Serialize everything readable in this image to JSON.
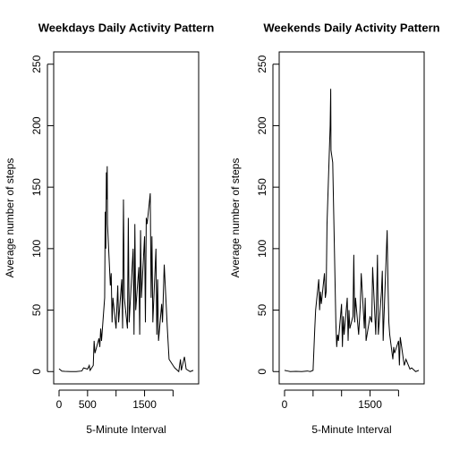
{
  "chart_data": [
    {
      "type": "line",
      "title": "Weekdays Daily Activity Pattern",
      "xlabel": "5-Minute Interval",
      "ylabel": "Average number of steps",
      "color": "#000000",
      "x": [
        0,
        50,
        100,
        200,
        300,
        400,
        430,
        500,
        530,
        545,
        600,
        615,
        630,
        700,
        715,
        730,
        745,
        800,
        810,
        820,
        830,
        835,
        845,
        850,
        900,
        915,
        930,
        945,
        1000,
        1030,
        1045,
        1100,
        1115,
        1130,
        1145,
        1200,
        1215,
        1230,
        1300,
        1315,
        1330,
        1345,
        1400,
        1415,
        1430,
        1445,
        1500,
        1515,
        1530,
        1545,
        1600,
        1615,
        1630,
        1645,
        1700,
        1715,
        1730,
        1745,
        1800,
        1815,
        1845,
        1900,
        1930,
        2000,
        2030,
        2100,
        2130,
        2145,
        2200,
        2230,
        2300,
        2355
      ],
      "values": [
        2.3,
        0.4,
        0.2,
        0,
        0,
        0.5,
        3,
        2,
        5,
        1,
        5,
        25,
        15,
        27,
        20,
        35,
        25,
        60,
        130,
        100,
        162,
        140,
        167,
        120,
        70,
        80,
        40,
        60,
        35,
        70,
        40,
        75,
        35,
        140,
        60,
        35,
        125,
        40,
        100,
        30,
        120,
        50,
        85,
        30,
        115,
        60,
        110,
        40,
        125,
        120,
        145,
        60,
        110,
        40,
        100,
        30,
        75,
        25,
        55,
        40,
        87,
        35,
        10,
        5,
        3,
        0,
        10,
        1,
        12,
        2,
        0,
        1
      ],
      "xlim": [
        -94.2,
        2449.2
      ],
      "ylim": [
        -10,
        260
      ],
      "xticks": [
        0,
        500,
        {
          "value": 1000,
          "label": null
        },
        1500,
        {
          "value": 2000,
          "label": null
        }
      ],
      "yticks": [
        0,
        50,
        100,
        150,
        200,
        250
      ]
    },
    {
      "type": "line",
      "title": "Weekends Daily Activity Pattern",
      "xlabel": "5-Minute Interval",
      "ylabel": "Average number of steps",
      "color": "#000000",
      "x": [
        0,
        50,
        100,
        200,
        300,
        400,
        450,
        500,
        530,
        545,
        600,
        615,
        630,
        645,
        700,
        715,
        730,
        745,
        800,
        810,
        815,
        830,
        845,
        900,
        915,
        930,
        945,
        1000,
        1015,
        1030,
        1045,
        1100,
        1115,
        1130,
        1145,
        1200,
        1215,
        1230,
        1245,
        1300,
        1330,
        1345,
        1400,
        1415,
        1430,
        1500,
        1530,
        1545,
        1600,
        1615,
        1630,
        1645,
        1700,
        1715,
        1730,
        1745,
        1800,
        1815,
        1830,
        1845,
        1900,
        1915,
        1930,
        2000,
        2015,
        2030,
        2100,
        2130,
        2200,
        2230,
        2300,
        2355
      ],
      "values": [
        1,
        0.5,
        0,
        0.2,
        0,
        0.5,
        0,
        1,
        35,
        50,
        75,
        50,
        65,
        55,
        80,
        60,
        65,
        120,
        200,
        230,
        180,
        175,
        170,
        40,
        20,
        30,
        25,
        55,
        20,
        45,
        30,
        60,
        25,
        50,
        35,
        45,
        95,
        40,
        60,
        30,
        55,
        80,
        35,
        60,
        25,
        45,
        40,
        85,
        30,
        60,
        95,
        30,
        65,
        82,
        25,
        45,
        115,
        70,
        40,
        30,
        10,
        20,
        15,
        25,
        5,
        28,
        5,
        10,
        2,
        3,
        0,
        1
      ],
      "xlim": [
        -94.2,
        2449.2
      ],
      "ylim": [
        -10,
        260
      ],
      "xticks": [
        0,
        {
          "value": 500,
          "label": null
        },
        {
          "value": 1000,
          "label": null
        },
        1500,
        {
          "value": 2000,
          "label": null
        }
      ],
      "yticks": [
        0,
        50,
        100,
        150,
        200,
        250
      ]
    }
  ]
}
